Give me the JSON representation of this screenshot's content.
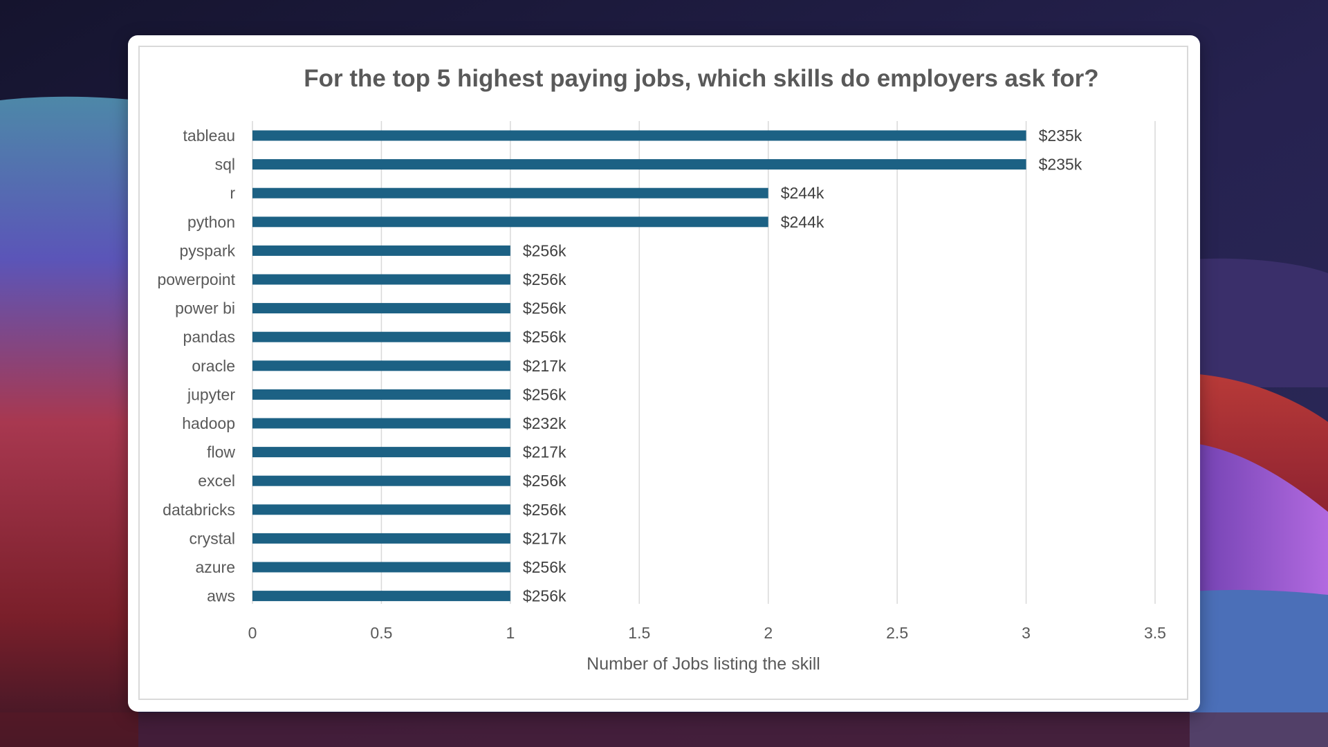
{
  "colors": {
    "bar": "#1c6184",
    "gridline": "#d9d9d9",
    "text": "#595959",
    "title": "#595959",
    "card_background": "#ffffff",
    "wallpaper_top": "#1e1b3e",
    "wallpaper_red": "#c0394a",
    "wallpaper_purple": "#a65cd6",
    "wallpaper_blue": "#4b6fb8"
  },
  "chart_data": {
    "type": "bar",
    "orientation": "horizontal",
    "title": "For the top 5 highest paying jobs, which skills do employers ask for?",
    "xlabel": "Number of Jobs listing the skill",
    "ylabel": "",
    "xlim": [
      0,
      3.5
    ],
    "x_ticks": [
      "0",
      "0.5",
      "1",
      "1.5",
      "2",
      "2.5",
      "3",
      "3.5"
    ],
    "grid": true,
    "legend": "none",
    "categories": [
      "tableau",
      "sql",
      "r",
      "python",
      "pyspark",
      "powerpoint",
      "power bi",
      "pandas",
      "oracle",
      "jupyter",
      "hadoop",
      "flow",
      "excel",
      "databricks",
      "crystal",
      "azure",
      "aws"
    ],
    "values": [
      3,
      3,
      2,
      2,
      1,
      1,
      1,
      1,
      1,
      1,
      1,
      1,
      1,
      1,
      1,
      1,
      1
    ],
    "data_labels": [
      "$235k",
      "$235k",
      "$244k",
      "$244k",
      "$256k",
      "$256k",
      "$256k",
      "$256k",
      "$217k",
      "$256k",
      "$232k",
      "$217k",
      "$256k",
      "$256k",
      "$217k",
      "$256k",
      "$256k"
    ]
  }
}
